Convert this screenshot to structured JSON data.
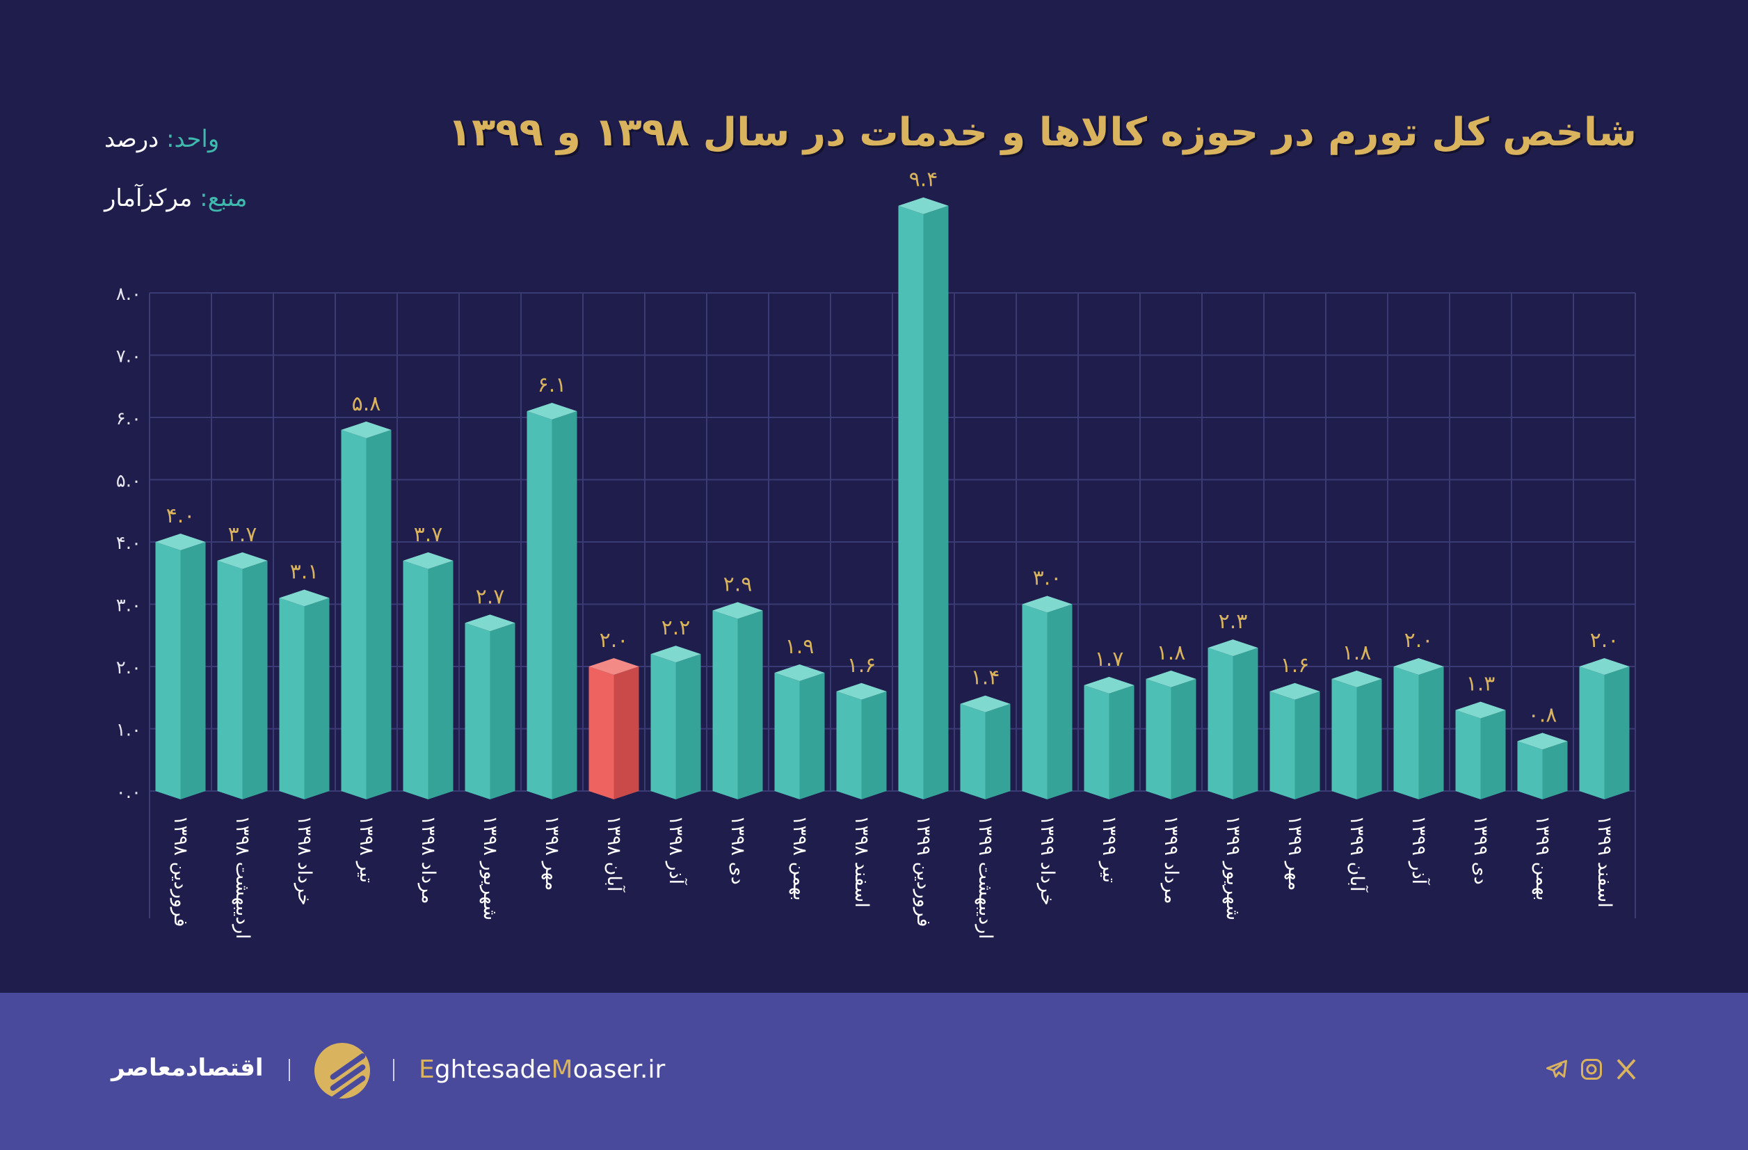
{
  "header": {
    "title": "شاخص کل تورم در حوزه کالاها و خدمات در سال ۱۳۹۸ و ۱۳۹۹",
    "unit_key": "واحد:",
    "unit_value": "درصد",
    "source_key": "منبع:",
    "source_value": "مرکزآمار"
  },
  "chart_data": {
    "type": "bar",
    "title": "شاخص کل تورم در حوزه کالاها و خدمات در سال ۱۳۹۸ و ۱۳۹۹",
    "ylim": [
      0,
      8
    ],
    "grid": true,
    "yticks": [
      0,
      1,
      2,
      3,
      4,
      5,
      6,
      7,
      8
    ],
    "ytick_labels": [
      "۰.۰",
      "۱.۰",
      "۲.۰",
      "۳.۰",
      "۴.۰",
      "۵.۰",
      "۶.۰",
      "۷.۰",
      "۸.۰"
    ],
    "categories": [
      "فروردین ۱۳۹۸",
      "اردیبهشت ۱۳۹۸",
      "خرداد ۱۳۹۸",
      "تیر ۱۳۹۸",
      "مرداد ۱۳۹۸",
      "شهریور ۱۳۹۸",
      "مهر ۱۳۹۸",
      "آبان ۱۳۹۸",
      "آذر ۱۳۹۸",
      "دی ۱۳۹۸",
      "بهمن ۱۳۹۸",
      "اسفند ۱۳۹۸",
      "فروردین ۱۳۹۹",
      "اردیبهشت ۱۳۹۹",
      "خرداد ۱۳۹۹",
      "تیر ۱۳۹۹",
      "مرداد ۱۳۹۹",
      "شهریور ۱۳۹۹",
      "مهر ۱۳۹۹",
      "آبان ۱۳۹۹",
      "آذر ۱۳۹۹",
      "دی ۱۳۹۹",
      "بهمن ۱۳۹۹",
      "اسفند ۱۳۹۹"
    ],
    "values": [
      4.0,
      3.7,
      3.1,
      5.8,
      3.7,
      2.7,
      6.1,
      2.0,
      2.2,
      2.9,
      1.9,
      1.6,
      9.4,
      1.4,
      3.0,
      1.7,
      1.8,
      2.3,
      1.6,
      1.8,
      2.0,
      1.3,
      0.8,
      2.0
    ],
    "value_labels": [
      "۴.۰",
      "۳.۷",
      "۳.۱",
      "۵.۸",
      "۳.۷",
      "۲.۷",
      "۶.۱",
      "۲.۰",
      "۲.۲",
      "۲.۹",
      "۱.۹",
      "۱.۶",
      "۹.۴",
      "۱.۴",
      "۳.۰",
      "۱.۷",
      "۱.۸",
      "۲.۳",
      "۱.۶",
      "۱.۸",
      "۲.۰",
      "۱.۳",
      "۰.۸",
      "۲.۰"
    ],
    "highlight_index": 7,
    "colors": {
      "bar": "#4dbfb4",
      "bar_dark": "#35a398",
      "bar_top": "#7fd9cf",
      "highlight": "#ee6360",
      "highlight_dark": "#c94a48",
      "highlight_top": "#f48a86",
      "value_label": "#d9b35e",
      "grid": "#3a3a74",
      "background": "#1f1d4b"
    }
  },
  "footer": {
    "brand": "اقتصادمعاصر",
    "site_e": "E",
    "site_1": "ghtesade",
    "site_m": "M",
    "site_2": "oaser.ir",
    "icons": [
      "telegram-icon",
      "instagram-icon",
      "x-icon"
    ],
    "background": "#4a4a9c"
  }
}
